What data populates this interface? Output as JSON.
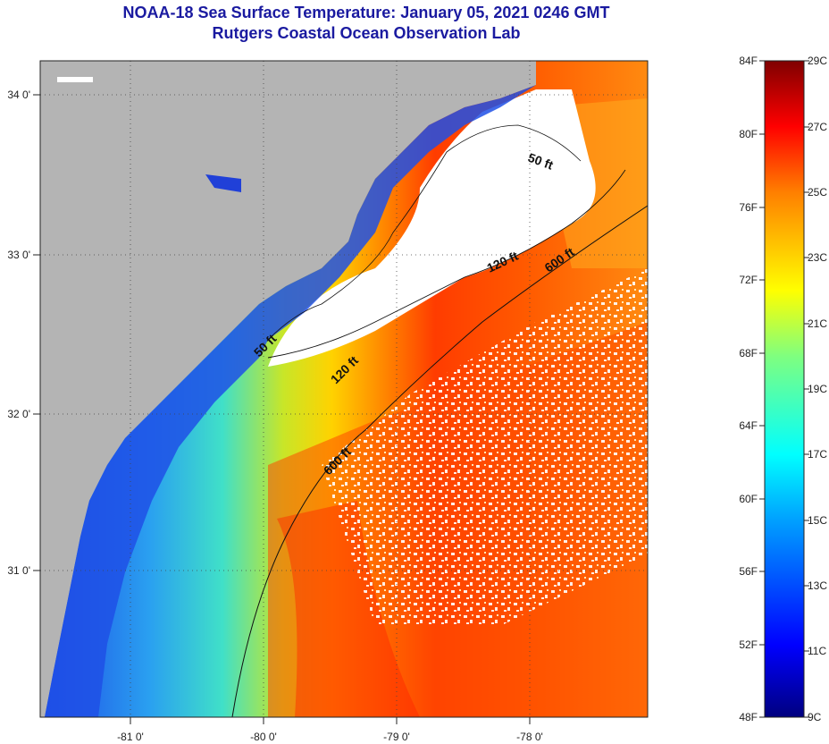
{
  "header": {
    "title": "NOAA-18 Sea Surface Temperature:  January 05, 2021 0246 GMT",
    "subtitle": "Rutgers Coastal Ocean Observation Lab"
  },
  "map": {
    "lon_labels": [
      "-81 0'",
      "-80 0'",
      "-79 0'",
      "-78 0'"
    ],
    "lat_labels": [
      "34 0'",
      "33 0'",
      "32 0'",
      "31 0'"
    ],
    "contours": [
      "50 ft",
      "50 ft",
      "120 ft",
      "120 ft",
      "600 ft",
      "600 ft"
    ],
    "colors": {
      "land": "#b4b4b4",
      "nodata": "#ffffff",
      "cold": "#1432d2",
      "warm": "#ff4000"
    }
  },
  "colorbar": {
    "fahrenheit": [
      "84F",
      "80F",
      "76F",
      "72F",
      "68F",
      "64F",
      "60F",
      "56F",
      "52F",
      "48F"
    ],
    "celsius": [
      "29C",
      "27C",
      "25C",
      "23C",
      "21C",
      "19C",
      "17C",
      "15C",
      "13C",
      "11C",
      "9C"
    ]
  }
}
